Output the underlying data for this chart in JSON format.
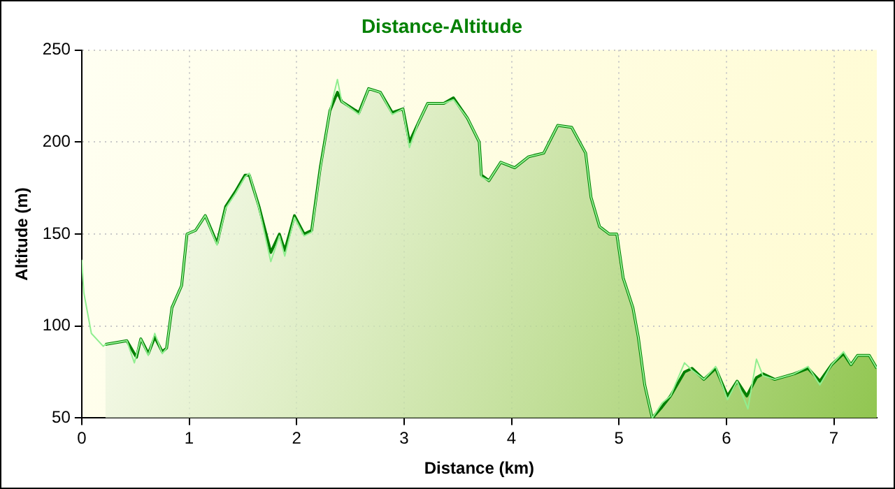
{
  "chart_data": {
    "type": "area",
    "title": "Distance-Altitude",
    "xlabel": "Distance (km)",
    "ylabel": "Altitude (m)",
    "xlim": [
      0,
      7.4
    ],
    "xticks": [
      0,
      1,
      2,
      3,
      4,
      5,
      6,
      7
    ],
    "ylim": [
      50,
      250
    ],
    "yticks": [
      50,
      100,
      150,
      200,
      250
    ],
    "grid": true,
    "legend": false,
    "marker": "none",
    "series": [
      {
        "type": "line",
        "color": "#90ee90",
        "x": [
          0,
          0.02,
          0.09,
          0.2,
          0.22,
          0.42,
          0.49,
          0.55,
          0.62,
          0.68,
          0.75,
          0.79,
          0.84,
          0.93,
          0.98,
          1.06,
          1.15,
          1.26,
          1.34,
          1.43,
          1.52,
          1.56,
          1.65,
          1.76,
          1.84,
          1.89,
          1.98,
          2.07,
          2.14,
          2.22,
          2.31,
          2.38,
          2.42,
          2.58,
          2.67,
          2.78,
          2.89,
          2.99,
          3.05,
          3.13,
          3.22,
          3.37,
          3.46,
          3.59,
          3.7,
          3.72,
          3.79,
          3.9,
          4.03,
          4.16,
          4.3,
          4.43,
          4.56,
          4.69,
          4.74,
          4.82,
          4.91,
          4.98,
          5.04,
          5.13,
          5.18,
          5.24,
          5.31,
          5.4,
          5.48,
          5.61,
          5.68,
          5.79,
          5.9,
          6.01,
          6.1,
          6.2,
          6.28,
          6.34,
          6.45,
          6.63,
          6.76,
          6.87,
          6.98,
          7.09,
          7.16,
          7.22,
          7.33,
          7.4
        ],
        "values": [
          136,
          118,
          96,
          89,
          90,
          92,
          80,
          93,
          84,
          96,
          85,
          88,
          110,
          122,
          150,
          152,
          160,
          144,
          164,
          172,
          181,
          183,
          164,
          135,
          149,
          138,
          159,
          149,
          151,
          185,
          217,
          234,
          222,
          215,
          229,
          227,
          215,
          218,
          197,
          210,
          221,
          221,
          223,
          213,
          200,
          181,
          179,
          189,
          186,
          192,
          194,
          209,
          208,
          194,
          170,
          154,
          150,
          150,
          126,
          110,
          94,
          68,
          50,
          58,
          62,
          80,
          76,
          71,
          78,
          60,
          70,
          55,
          82,
          73,
          71,
          74,
          78,
          68,
          79,
          86,
          79,
          84,
          84,
          77
        ]
      },
      {
        "type": "area",
        "color": "#008000",
        "x": [
          0.22,
          0.42,
          0.51,
          0.55,
          0.62,
          0.68,
          0.75,
          0.79,
          0.84,
          0.93,
          0.98,
          1.06,
          1.15,
          1.26,
          1.34,
          1.43,
          1.52,
          1.56,
          1.65,
          1.76,
          1.84,
          1.89,
          1.98,
          2.07,
          2.14,
          2.22,
          2.31,
          2.38,
          2.42,
          2.58,
          2.67,
          2.78,
          2.89,
          2.99,
          3.05,
          3.13,
          3.22,
          3.37,
          3.46,
          3.59,
          3.7,
          3.72,
          3.79,
          3.9,
          4.03,
          4.16,
          4.3,
          4.43,
          4.56,
          4.69,
          4.74,
          4.82,
          4.91,
          4.98,
          5.04,
          5.13,
          5.18,
          5.24,
          5.31,
          5.4,
          5.48,
          5.61,
          5.68,
          5.79,
          5.9,
          6.01,
          6.1,
          6.19,
          6.28,
          6.34,
          6.45,
          6.63,
          6.76,
          6.87,
          6.98,
          7.09,
          7.16,
          7.22,
          7.33,
          7.4
        ],
        "values": [
          90,
          92,
          83,
          93,
          85,
          94,
          86,
          88,
          110,
          122,
          150,
          152,
          160,
          145,
          165,
          173,
          182,
          182,
          165,
          140,
          150,
          141,
          160,
          150,
          152,
          186,
          217,
          227,
          222,
          216,
          229,
          227,
          216,
          218,
          200,
          210,
          221,
          221,
          224,
          213,
          200,
          182,
          179,
          189,
          186,
          192,
          194,
          209,
          208,
          194,
          170,
          154,
          150,
          150,
          126,
          110,
          94,
          68,
          50,
          56,
          62,
          75,
          77,
          71,
          77,
          62,
          70,
          62,
          72,
          74,
          71,
          74,
          77,
          70,
          79,
          85,
          79,
          84,
          84,
          77
        ]
      }
    ]
  }
}
